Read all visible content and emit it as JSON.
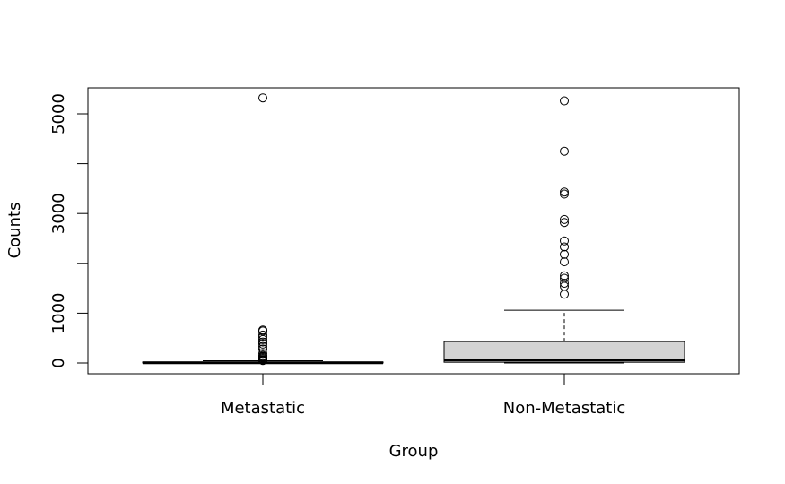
{
  "chart_data": {
    "type": "boxplot",
    "title": "",
    "xlabel": "Group",
    "ylabel": "Counts",
    "categories": [
      "Metastatic",
      "Non-Metastatic"
    ],
    "ylim": [
      -200,
      5550
    ],
    "yticks": [
      0,
      1000,
      2000,
      3000,
      4000,
      5000
    ],
    "ytick_labels": [
      "0",
      "1000",
      "",
      "3000",
      "",
      "5000"
    ],
    "boxes": [
      {
        "name": "Metastatic",
        "whisker_low": 0,
        "q1": 0,
        "median": 5,
        "q3": 20,
        "whisker_high": 45,
        "fill": "#d3d3d3",
        "outliers": [
          5320,
          660,
          640,
          560,
          520,
          470,
          420,
          380,
          330,
          280,
          190,
          150,
          130,
          110,
          90,
          70,
          60,
          50
        ]
      },
      {
        "name": "Non-Metastatic",
        "whisker_low": 0,
        "q1": 15,
        "median": 60,
        "q3": 430,
        "whisker_high": 1060,
        "fill": "#d3d3d3",
        "outliers": [
          5260,
          4250,
          3430,
          3390,
          2880,
          2820,
          2450,
          2330,
          2180,
          2030,
          1750,
          1700,
          1600,
          1540,
          1380
        ]
      }
    ],
    "grid": false,
    "legend": "none"
  }
}
